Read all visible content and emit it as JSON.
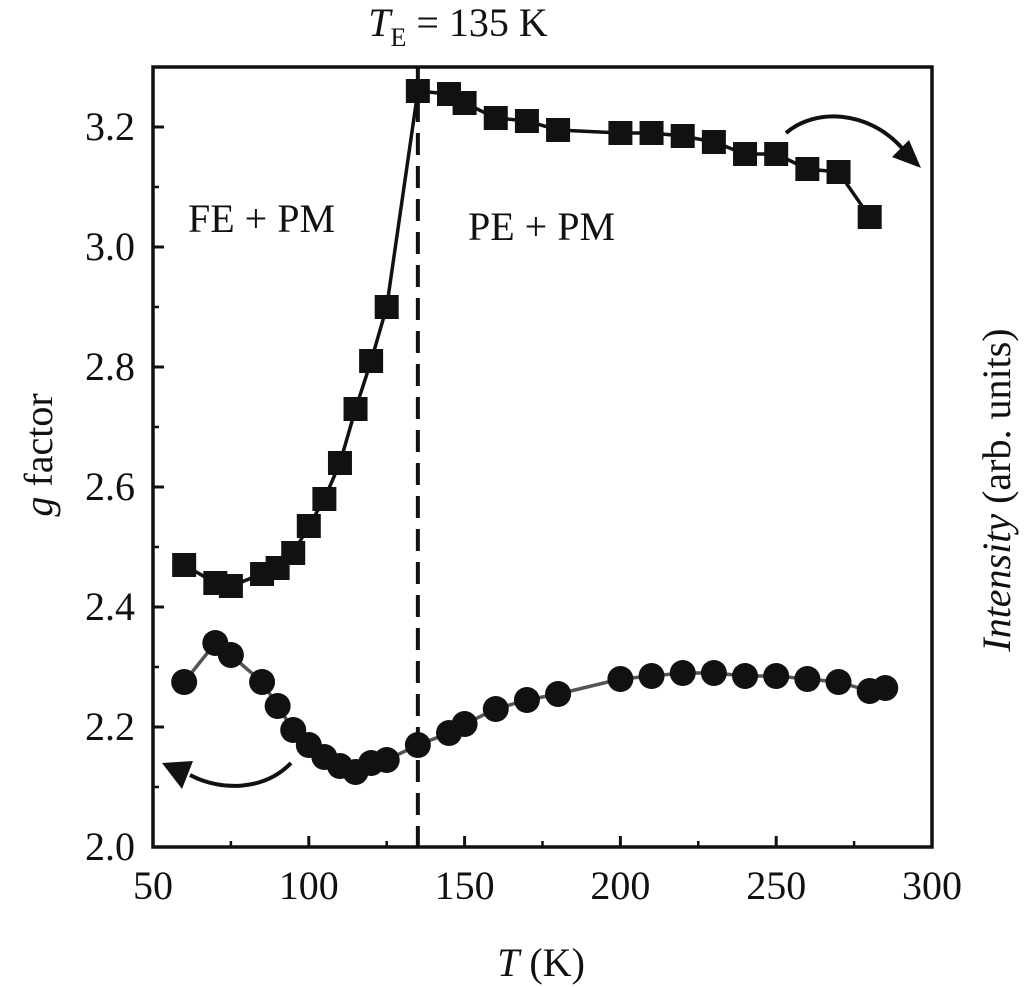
{
  "chart_data": {
    "type": "scatter",
    "annotation_top": {
      "symbol": "T",
      "subscript": "E",
      "rest": " = 135 K"
    },
    "xlabel": {
      "symbol": "T",
      "unit": " (K)"
    },
    "ylabel": {
      "symbol": "g",
      "rest": " factor"
    },
    "y2label": {
      "symbol": "Intensity",
      "rest": " (arb. units)"
    },
    "xlim": [
      50,
      300
    ],
    "ylim": [
      2.0,
      3.3
    ],
    "xticks": [
      "50",
      "100",
      "150",
      "200",
      "250",
      "300"
    ],
    "yticks": [
      "2.0",
      "2.2",
      "2.4",
      "2.6",
      "2.8",
      "3.0",
      "3.2"
    ],
    "grid": false,
    "vline_x": 135,
    "regions": [
      "FE + PM",
      "PE + PM"
    ],
    "series": [
      {
        "marker": "square",
        "axis": "right",
        "color": "#111111",
        "x": [
          60,
          70,
          75,
          85,
          90,
          95,
          100,
          105,
          110,
          115,
          120,
          125,
          135,
          145,
          150,
          160,
          170,
          180,
          200,
          210,
          220,
          230,
          240,
          250,
          260,
          270,
          280
        ],
        "y": [
          2.47,
          2.44,
          2.435,
          2.455,
          2.465,
          2.49,
          2.535,
          2.58,
          2.64,
          2.73,
          2.81,
          2.9,
          3.26,
          3.255,
          3.24,
          3.215,
          3.21,
          3.195,
          3.19,
          3.19,
          3.185,
          3.175,
          3.155,
          3.155,
          3.13,
          3.125,
          3.05
        ]
      },
      {
        "marker": "circle",
        "axis": "left",
        "color": "#111111",
        "line_color": "#555555",
        "x": [
          60,
          70,
          75,
          85,
          90,
          95,
          100,
          105,
          110,
          115,
          120,
          125,
          135,
          145,
          150,
          160,
          170,
          180,
          200,
          210,
          220,
          230,
          240,
          250,
          260,
          270,
          280,
          285
        ],
        "y": [
          2.275,
          2.34,
          2.32,
          2.275,
          2.235,
          2.195,
          2.17,
          2.15,
          2.135,
          2.125,
          2.14,
          2.145,
          2.17,
          2.19,
          2.205,
          2.23,
          2.245,
          2.255,
          2.28,
          2.285,
          2.29,
          2.29,
          2.285,
          2.285,
          2.28,
          2.275,
          2.26,
          2.265
        ]
      }
    ]
  }
}
